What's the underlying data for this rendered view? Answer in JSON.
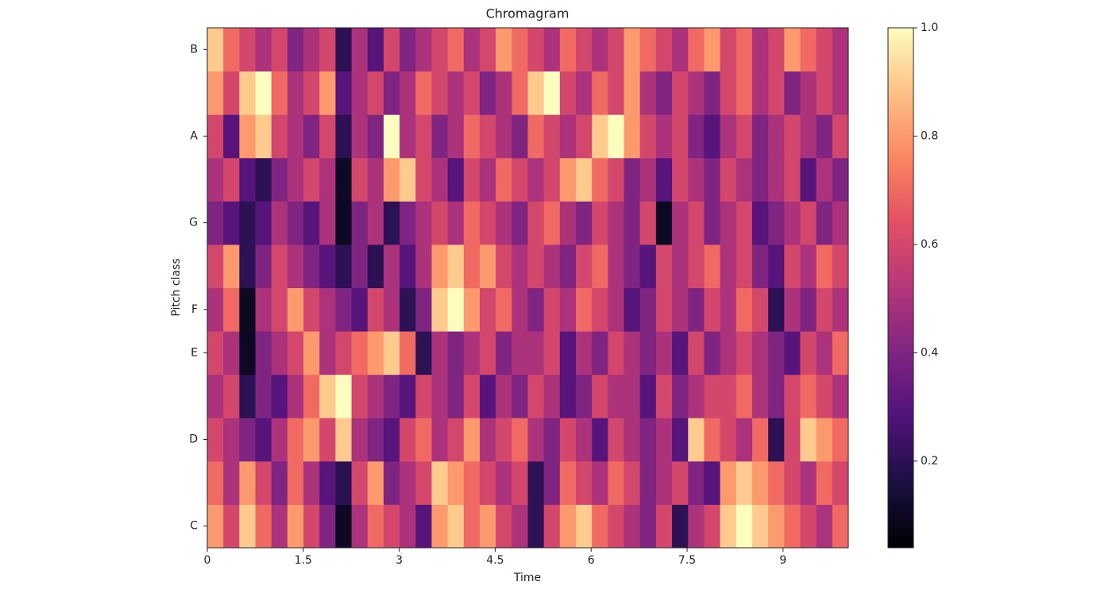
{
  "chart_data": {
    "type": "heatmap",
    "title": "Chromagram",
    "xlabel": "Time",
    "ylabel": "Pitch class",
    "colormap": "magma",
    "categories": [
      "C",
      null,
      "D",
      null,
      "E",
      "F",
      null,
      "G",
      null,
      "A",
      null,
      "B"
    ],
    "xlim": [
      0,
      10.02
    ],
    "xticks": [
      0,
      1.5,
      3,
      4.5,
      6,
      7.5,
      9
    ],
    "clim": [
      0.04,
      1.0
    ],
    "cticks": [
      0.2,
      0.4,
      0.6,
      0.8,
      {
        "value": 1.0,
        "label": "1.0"
      }
    ],
    "z": [
      [
        0.8,
        0.6,
        0.9,
        0.7,
        0.5,
        0.8,
        0.6,
        0.4,
        0.1,
        0.5,
        0.7,
        0.6,
        0.5,
        0.3,
        0.8,
        0.9,
        0.7,
        0.8,
        0.6,
        0.5,
        0.2,
        0.6,
        0.8,
        0.9,
        0.7,
        0.6,
        0.5,
        0.4,
        0.6,
        0.2,
        0.5,
        0.6,
        0.9,
        1.0,
        0.9,
        0.8,
        0.7,
        0.6,
        0.5,
        0.7
      ],
      [
        0.7,
        0.5,
        0.8,
        0.6,
        0.4,
        0.7,
        0.5,
        0.3,
        0.2,
        0.6,
        0.8,
        0.4,
        0.5,
        0.6,
        0.9,
        0.8,
        0.7,
        0.6,
        0.5,
        0.6,
        0.2,
        0.4,
        0.7,
        0.6,
        0.5,
        0.7,
        0.6,
        0.4,
        0.5,
        0.6,
        0.4,
        0.3,
        0.8,
        0.9,
        0.8,
        0.7,
        0.6,
        0.5,
        0.7,
        0.6
      ],
      [
        0.6,
        0.5,
        0.4,
        0.3,
        0.5,
        0.7,
        0.8,
        0.6,
        0.9,
        0.5,
        0.4,
        0.3,
        0.6,
        0.7,
        0.5,
        0.6,
        0.8,
        0.5,
        0.6,
        0.7,
        0.5,
        0.4,
        0.6,
        0.5,
        0.3,
        0.6,
        0.5,
        0.4,
        0.5,
        0.3,
        0.9,
        0.7,
        0.6,
        0.5,
        0.7,
        0.2,
        0.6,
        0.9,
        0.8,
        0.7
      ],
      [
        0.5,
        0.6,
        0.2,
        0.4,
        0.3,
        0.5,
        0.7,
        0.9,
        1.0,
        0.6,
        0.5,
        0.4,
        0.3,
        0.6,
        0.5,
        0.4,
        0.6,
        0.3,
        0.5,
        0.4,
        0.6,
        0.5,
        0.3,
        0.4,
        0.6,
        0.5,
        0.5,
        0.3,
        0.6,
        0.4,
        0.5,
        0.6,
        0.6,
        0.7,
        0.5,
        0.4,
        0.6,
        0.7,
        0.6,
        0.5
      ],
      [
        0.6,
        0.5,
        0.1,
        0.4,
        0.5,
        0.6,
        0.8,
        0.5,
        0.6,
        0.7,
        0.8,
        0.9,
        0.7,
        0.2,
        0.5,
        0.4,
        0.5,
        0.6,
        0.4,
        0.5,
        0.5,
        0.6,
        0.3,
        0.5,
        0.4,
        0.6,
        0.5,
        0.4,
        0.5,
        0.3,
        0.6,
        0.4,
        0.5,
        0.6,
        0.5,
        0.4,
        0.3,
        0.6,
        0.5,
        0.7
      ],
      [
        0.5,
        0.7,
        0.1,
        0.5,
        0.6,
        0.8,
        0.6,
        0.5,
        0.4,
        0.3,
        0.6,
        0.5,
        0.2,
        0.4,
        0.9,
        1.0,
        0.8,
        0.6,
        0.7,
        0.5,
        0.4,
        0.6,
        0.5,
        0.7,
        0.6,
        0.5,
        0.3,
        0.4,
        0.6,
        0.5,
        0.4,
        0.6,
        0.5,
        0.7,
        0.6,
        0.2,
        0.5,
        0.4,
        0.6,
        0.5
      ],
      [
        0.6,
        0.8,
        0.2,
        0.4,
        0.6,
        0.5,
        0.4,
        0.3,
        0.2,
        0.4,
        0.2,
        0.5,
        0.3,
        0.5,
        0.8,
        0.9,
        0.7,
        0.8,
        0.6,
        0.5,
        0.6,
        0.5,
        0.4,
        0.6,
        0.7,
        0.5,
        0.4,
        0.3,
        0.6,
        0.5,
        0.6,
        0.7,
        0.5,
        0.6,
        0.4,
        0.3,
        0.6,
        0.5,
        0.7,
        0.6
      ],
      [
        0.4,
        0.3,
        0.2,
        0.3,
        0.5,
        0.4,
        0.3,
        0.5,
        0.1,
        0.4,
        0.5,
        0.2,
        0.4,
        0.5,
        0.6,
        0.5,
        0.7,
        0.6,
        0.5,
        0.4,
        0.6,
        0.7,
        0.5,
        0.4,
        0.6,
        0.5,
        0.4,
        0.6,
        0.1,
        0.5,
        0.6,
        0.4,
        0.5,
        0.6,
        0.3,
        0.4,
        0.5,
        0.6,
        0.4,
        0.5
      ],
      [
        0.5,
        0.6,
        0.3,
        0.2,
        0.4,
        0.5,
        0.6,
        0.5,
        0.1,
        0.6,
        0.5,
        0.8,
        0.9,
        0.6,
        0.5,
        0.3,
        0.6,
        0.5,
        0.7,
        0.6,
        0.5,
        0.6,
        0.8,
        0.9,
        0.7,
        0.6,
        0.4,
        0.5,
        0.3,
        0.6,
        0.5,
        0.4,
        0.6,
        0.5,
        0.4,
        0.5,
        0.6,
        0.3,
        0.5,
        0.4
      ],
      [
        0.6,
        0.3,
        0.8,
        0.9,
        0.6,
        0.5,
        0.4,
        0.6,
        0.2,
        0.5,
        0.4,
        1.0,
        0.5,
        0.6,
        0.4,
        0.5,
        0.7,
        0.6,
        0.5,
        0.4,
        0.7,
        0.6,
        0.5,
        0.6,
        0.9,
        1.0,
        0.8,
        0.6,
        0.5,
        0.6,
        0.4,
        0.3,
        0.5,
        0.6,
        0.4,
        0.5,
        0.6,
        0.5,
        0.4,
        0.6
      ],
      [
        0.8,
        0.6,
        0.9,
        1.0,
        0.7,
        0.5,
        0.6,
        0.8,
        0.3,
        0.5,
        0.6,
        0.4,
        0.5,
        0.7,
        0.6,
        0.5,
        0.6,
        0.4,
        0.5,
        0.7,
        0.9,
        1.0,
        0.6,
        0.5,
        0.7,
        0.6,
        0.8,
        0.5,
        0.4,
        0.6,
        0.5,
        0.4,
        0.6,
        0.7,
        0.5,
        0.6,
        0.4,
        0.5,
        0.6,
        0.5
      ],
      [
        0.9,
        0.7,
        0.6,
        0.5,
        0.6,
        0.4,
        0.5,
        0.6,
        0.2,
        0.5,
        0.3,
        0.6,
        0.4,
        0.5,
        0.6,
        0.7,
        0.5,
        0.6,
        0.8,
        0.7,
        0.6,
        0.5,
        0.7,
        0.6,
        0.5,
        0.6,
        0.8,
        0.7,
        0.6,
        0.5,
        0.7,
        0.8,
        0.6,
        0.7,
        0.5,
        0.6,
        0.8,
        0.7,
        0.6,
        0.5
      ]
    ]
  }
}
